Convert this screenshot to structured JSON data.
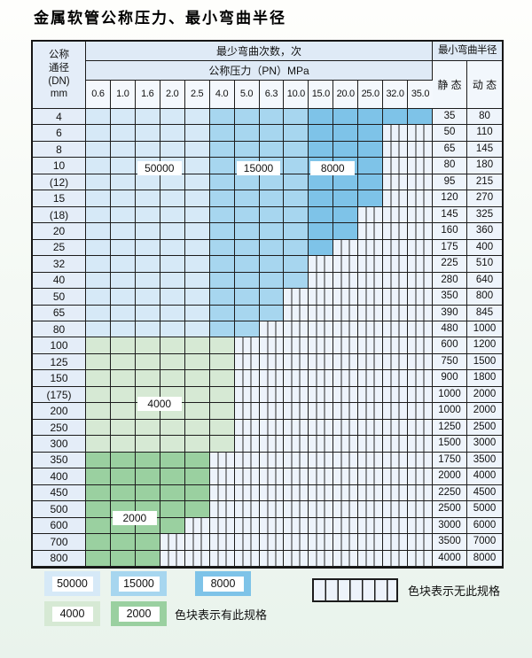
{
  "title": "金属软管公称压力、最小弯曲半径",
  "table_header": {
    "dn_lines": [
      "公称",
      "通径",
      "(DN)",
      "mm"
    ],
    "cycles": "最少弯曲次数，次",
    "pressure": "公称压力（PN）MPa",
    "radius": "最小弯曲半径",
    "static": "静 态",
    "dynamic": "动 态"
  },
  "chart_data": {
    "type": "table",
    "title": "金属软管公称压力、最小弯曲半径",
    "row_header": "公称通径(DN) mm",
    "col_header": "公称压力（PN）MPa",
    "radius_columns": [
      "静 态",
      "动 态"
    ],
    "pressure_columns_MPa": [
      "0.6",
      "1.0",
      "1.6",
      "2.0",
      "2.5",
      "4.0",
      "5.0",
      "6.3",
      "10.0",
      "15.0",
      "20.0",
      "25.0",
      "32.0",
      "35.0"
    ],
    "rows": [
      {
        "dn": "4",
        "max_pn": "35.0",
        "zone": "blue",
        "static_radius": "35",
        "dynamic_radius": "80"
      },
      {
        "dn": "6",
        "max_pn": "25.0",
        "zone": "blue",
        "static_radius": "50",
        "dynamic_radius": "110"
      },
      {
        "dn": "8",
        "max_pn": "25.0",
        "zone": "blue",
        "static_radius": "65",
        "dynamic_radius": "145"
      },
      {
        "dn": "10",
        "max_pn": "25.0",
        "zone": "blue",
        "static_radius": "80",
        "dynamic_radius": "180"
      },
      {
        "dn": "(12)",
        "max_pn": "25.0",
        "zone": "blue",
        "static_radius": "95",
        "dynamic_radius": "215"
      },
      {
        "dn": "15",
        "max_pn": "25.0",
        "zone": "blue",
        "static_radius": "120",
        "dynamic_radius": "270"
      },
      {
        "dn": "(18)",
        "max_pn": "20.0",
        "zone": "blue",
        "static_radius": "145",
        "dynamic_radius": "325"
      },
      {
        "dn": "20",
        "max_pn": "20.0",
        "zone": "blue",
        "static_radius": "160",
        "dynamic_radius": "360"
      },
      {
        "dn": "25",
        "max_pn": "15.0",
        "zone": "blue",
        "static_radius": "175",
        "dynamic_radius": "400"
      },
      {
        "dn": "32",
        "max_pn": "10.0",
        "zone": "blue",
        "static_radius": "225",
        "dynamic_radius": "510"
      },
      {
        "dn": "40",
        "max_pn": "10.0",
        "zone": "blue",
        "static_radius": "280",
        "dynamic_radius": "640"
      },
      {
        "dn": "50",
        "max_pn": "6.3",
        "zone": "blue",
        "static_radius": "350",
        "dynamic_radius": "800"
      },
      {
        "dn": "65",
        "max_pn": "6.3",
        "zone": "blue",
        "static_radius": "390",
        "dynamic_radius": "845"
      },
      {
        "dn": "80",
        "max_pn": "5.0",
        "zone": "blue",
        "static_radius": "480",
        "dynamic_radius": "1000"
      },
      {
        "dn": "100",
        "max_pn": "4.0",
        "zone": "g4",
        "static_radius": "600",
        "dynamic_radius": "1200"
      },
      {
        "dn": "125",
        "max_pn": "4.0",
        "zone": "g4",
        "static_radius": "750",
        "dynamic_radius": "1500"
      },
      {
        "dn": "150",
        "max_pn": "4.0",
        "zone": "g4",
        "static_radius": "900",
        "dynamic_radius": "1800"
      },
      {
        "dn": "(175)",
        "max_pn": "4.0",
        "zone": "g4",
        "static_radius": "1000",
        "dynamic_radius": "2000"
      },
      {
        "dn": "200",
        "max_pn": "4.0",
        "zone": "g4",
        "static_radius": "1000",
        "dynamic_radius": "2000"
      },
      {
        "dn": "250",
        "max_pn": "4.0",
        "zone": "g4",
        "static_radius": "1250",
        "dynamic_radius": "2500"
      },
      {
        "dn": "300",
        "max_pn": "4.0",
        "zone": "g4",
        "static_radius": "1500",
        "dynamic_radius": "3000"
      },
      {
        "dn": "350",
        "max_pn": "2.5",
        "zone": "g2",
        "static_radius": "1750",
        "dynamic_radius": "3500"
      },
      {
        "dn": "400",
        "max_pn": "2.5",
        "zone": "g2",
        "static_radius": "2000",
        "dynamic_radius": "4000"
      },
      {
        "dn": "450",
        "max_pn": "2.5",
        "zone": "g2",
        "static_radius": "2250",
        "dynamic_radius": "4500"
      },
      {
        "dn": "500",
        "max_pn": "2.5",
        "zone": "g2",
        "static_radius": "2500",
        "dynamic_radius": "5000"
      },
      {
        "dn": "600",
        "max_pn": "2.0",
        "zone": "g2",
        "static_radius": "3000",
        "dynamic_radius": "6000"
      },
      {
        "dn": "700",
        "max_pn": "1.6",
        "zone": "g2",
        "static_radius": "3500",
        "dynamic_radius": "7000"
      },
      {
        "dn": "800",
        "max_pn": "1.6",
        "zone": "g2",
        "static_radius": "4000",
        "dynamic_radius": "8000"
      }
    ],
    "cycle_zones": [
      {
        "cycles": "50000",
        "rows": "4–80",
        "pn_cols": "0.6–2.5",
        "color_key": "blue_light"
      },
      {
        "cycles": "15000",
        "rows": "4–80",
        "pn_cols": "4.0–10.0",
        "color_key": "blue_mid"
      },
      {
        "cycles": "8000",
        "rows": "4–80",
        "pn_cols": "15.0–35.0",
        "color_key": "blue_dark"
      },
      {
        "cycles": "4000",
        "rows": "100–300",
        "pn_cols": "0.6–4.0",
        "color_key": "green_light"
      },
      {
        "cycles": "2000",
        "rows": "350–800",
        "pn_cols": "0.6–2.5",
        "color_key": "green_dark"
      }
    ],
    "annotations": [
      {
        "text": "50000",
        "row_dn": "10",
        "row_offset": 0.1,
        "col_pn": "1.6",
        "col_span": 2
      },
      {
        "text": "15000",
        "row_dn": "10",
        "row_offset": 0.1,
        "col_pn": "5.0",
        "col_span": 2
      },
      {
        "text": "8000",
        "row_dn": "10",
        "row_offset": 0.1,
        "col_pn": "15.0",
        "col_span": 2
      },
      {
        "text": "4000",
        "row_dn": "200",
        "row_offset": -0.5,
        "col_pn": "1.6",
        "col_span": 2
      },
      {
        "text": "2000",
        "row_dn": "600",
        "row_offset": -0.5,
        "col_pn": "1.0",
        "col_span": 2
      }
    ]
  },
  "legend": {
    "has_spec_items": [
      {
        "label": "50000",
        "color_key": "blue_light"
      },
      {
        "label": "15000",
        "color_key": "blue_mid"
      },
      {
        "label": "8000",
        "color_key": "blue_dark"
      },
      {
        "label": "4000",
        "color_key": "green_light"
      },
      {
        "label": "2000",
        "color_key": "green_dark"
      }
    ],
    "has_spec_text": "色块表示有此规格",
    "no_spec_text": "色块表示无此规格"
  },
  "colors": {
    "blue_light": "#d6e9f7",
    "blue_mid": "#a7d6ef",
    "blue_dark": "#7ec3e8",
    "green_light": "#d6e9d4",
    "green_dark": "#9ad0a0",
    "hatch_bg": "#edf3fb",
    "hatch_line": "#2b2b2b"
  }
}
